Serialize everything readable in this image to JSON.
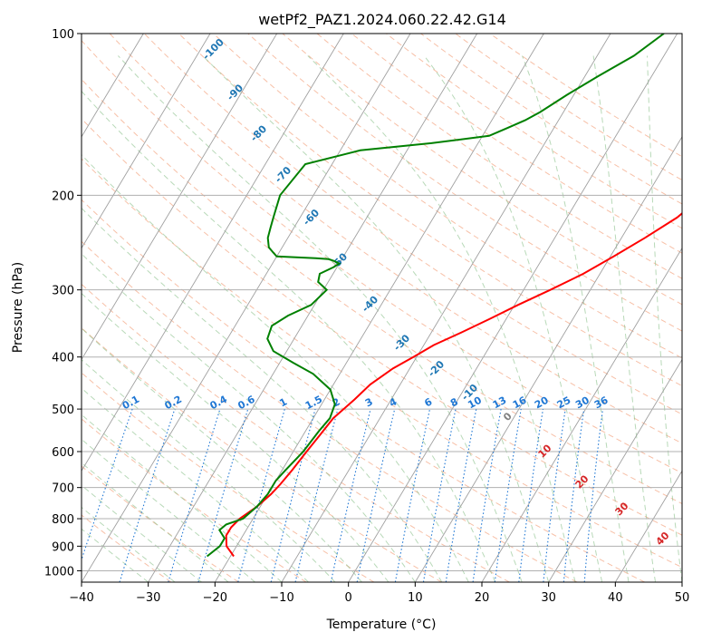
{
  "chart_data": {
    "type": "line",
    "title": "wetPf2_PAZ1.2024.060.22.42.G14",
    "xlabel": "Temperature (°C)",
    "ylabel": "Pressure (hPa)",
    "xlim": [
      -40,
      50
    ],
    "ylim": [
      1050,
      100
    ],
    "y_scale": "log",
    "x_ticks": [
      "−40",
      "−30",
      "−20",
      "−10",
      "0",
      "10",
      "20",
      "30",
      "40",
      "50"
    ],
    "y_ticks": [
      "100",
      "200",
      "300",
      "400",
      "500",
      "600",
      "700",
      "800",
      "900",
      "1000"
    ],
    "grid": true,
    "series": [
      {
        "color": "#ff0000",
        "p": [
          940,
          900,
          860,
          830,
          800,
          760,
          720,
          690,
          650,
          600,
          560,
          520,
          480,
          450,
          420,
          400,
          380,
          360,
          340,
          320,
          300,
          280,
          260,
          240,
          220,
          200,
          180,
          160,
          150,
          140,
          130,
          120,
          110,
          100
        ],
        "t": [
          -19.5,
          -21.5,
          -22.5,
          -22.5,
          -22.0,
          -20.5,
          -19.5,
          -19.0,
          -18.5,
          -18.0,
          -17.5,
          -17.0,
          -15.5,
          -14.5,
          -12.5,
          -10.5,
          -8.5,
          -5.5,
          -2.5,
          0.5,
          4.0,
          7.5,
          10.5,
          13.5,
          16.5,
          18.5,
          20.5,
          22.0,
          24.5,
          27.0,
          29.5,
          32.0,
          34.5,
          38.5
        ]
      },
      {
        "color": "#008000",
        "p": [
          940,
          900,
          870,
          840,
          820,
          800,
          760,
          720,
          680,
          650,
          600,
          550,
          520,
          490,
          460,
          430,
          410,
          390,
          370,
          350,
          335,
          320,
          300,
          290,
          280,
          272,
          268,
          265,
          263,
          262,
          260,
          255,
          250,
          240,
          230,
          220,
          200,
          175,
          165,
          160,
          155,
          150,
          145,
          140,
          130,
          120,
          110,
          100
        ],
        "t": [
          -23.5,
          -22.5,
          -22.5,
          -24.0,
          -23.5,
          -21.5,
          -20.5,
          -20.0,
          -20.0,
          -19.5,
          -18.5,
          -18.0,
          -17.5,
          -18.0,
          -20.0,
          -24.0,
          -28.0,
          -32.0,
          -34.0,
          -34.5,
          -33.0,
          -30.5,
          -29.5,
          -31.5,
          -32.0,
          -30.5,
          -30.0,
          -31.0,
          -32.0,
          -34.0,
          -40.0,
          -41.0,
          -42.0,
          -43.0,
          -43.5,
          -44.0,
          -45.0,
          -44.0,
          -37.0,
          -27.0,
          -19.0,
          -17.0,
          -15.0,
          -13.5,
          -11.0,
          -8.0,
          -4.5,
          -2.0
        ]
      }
    ],
    "isotherm_step": 10,
    "dry_adiabats_theta_c": [
      -30,
      -20,
      -10,
      0,
      10,
      20,
      30,
      40,
      50,
      60,
      70,
      80,
      90,
      100,
      110,
      120,
      130,
      140,
      150,
      160,
      170,
      180,
      190,
      200
    ],
    "moist_adiabat_labels": [
      "-100",
      "-90",
      "-80",
      "-70",
      "-60",
      "-50",
      "-40",
      "-30",
      "-20",
      "-10",
      "0",
      "10",
      "20",
      "30",
      "40"
    ],
    "mixing_ratio_labels": [
      "0.1",
      "0.2",
      "0.4",
      "0.6",
      "1",
      "1.5",
      "2",
      "3",
      "4",
      "6",
      "8",
      "10",
      "13",
      "16",
      "20",
      "25",
      "30",
      "36"
    ],
    "colors": {
      "temperature": "#ff0000",
      "dewpoint": "#008000",
      "isotherm": "#a0a0a0",
      "dry_adiabat": "#f4a582",
      "moist_adiabat": "#88c088",
      "mixing_ratio": "#1f77d4",
      "label_blue": "#1f77b4",
      "label_gray": "#808080",
      "label_red": "#d62728"
    }
  }
}
